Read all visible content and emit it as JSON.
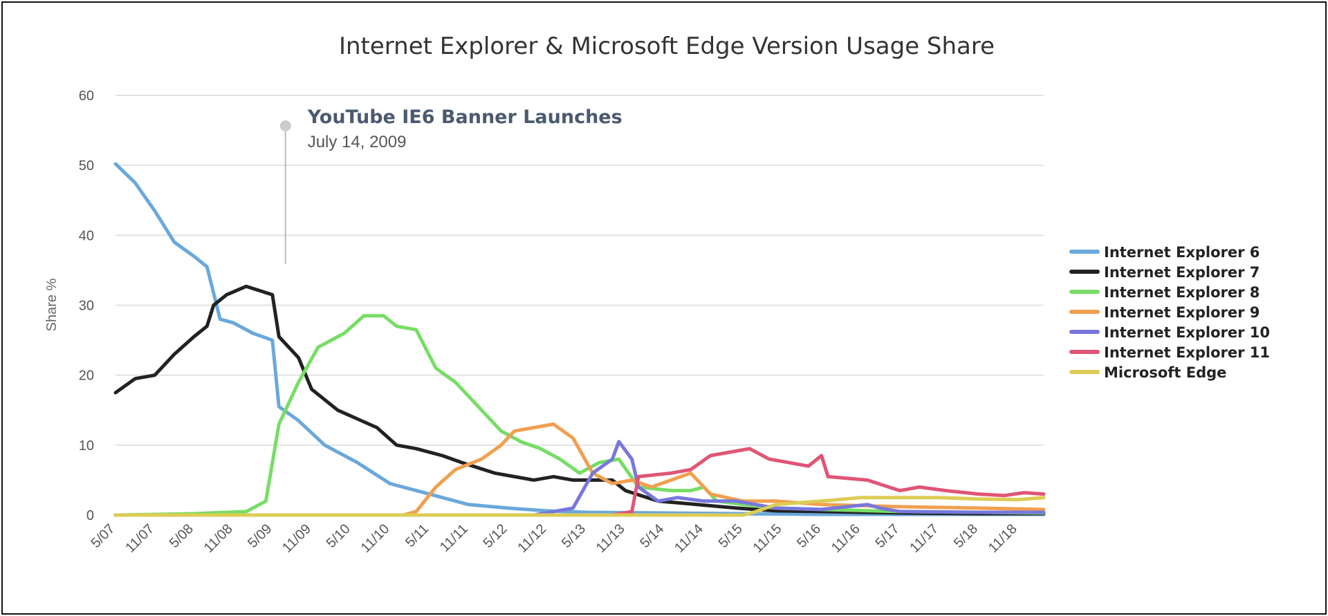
{
  "chart_data": {
    "type": "line",
    "title": "Internet Explorer & Microsoft Edge Version Usage Share",
    "xlabel": "",
    "ylabel": "Share %",
    "ylim": [
      0,
      60
    ],
    "yticks": [
      0,
      10,
      20,
      30,
      40,
      50,
      60
    ],
    "xlim": [
      "2007-05",
      "2019-03"
    ],
    "xticks": [
      "5/07",
      "11/07",
      "5/08",
      "11/08",
      "5/09",
      "11/09",
      "5/10",
      "11/10",
      "5/11",
      "11/11",
      "5/12",
      "11/12",
      "5/13",
      "11/13",
      "5/14",
      "11/14",
      "5/15",
      "11/15",
      "5/16",
      "11/16",
      "5/17",
      "11/17",
      "5/18",
      "11/18"
    ],
    "grid": true,
    "legend_position": "right",
    "annotation": {
      "title": "YouTube IE6 Banner Launches",
      "subtitle": "July 14, 2009",
      "x": "2009-07"
    },
    "series": [
      {
        "name": "Internet Explorer 6",
        "color": "#6aa8dc",
        "points": [
          [
            "2007-05",
            50.2
          ],
          [
            "2007-08",
            47.5
          ],
          [
            "2007-11",
            43.5
          ],
          [
            "2008-02",
            39
          ],
          [
            "2008-05",
            37
          ],
          [
            "2008-07",
            35.5
          ],
          [
            "2008-09",
            28
          ],
          [
            "2008-11",
            27.5
          ],
          [
            "2009-02",
            26
          ],
          [
            "2009-05",
            25
          ],
          [
            "2009-06",
            15.5
          ],
          [
            "2009-09",
            13.5
          ],
          [
            "2010-01",
            10
          ],
          [
            "2010-06",
            7.5
          ],
          [
            "2010-11",
            4.5
          ],
          [
            "2011-05",
            3
          ],
          [
            "2011-11",
            1.5
          ],
          [
            "2012-05",
            1
          ],
          [
            "2012-11",
            0.6
          ],
          [
            "2013-05",
            0.4
          ],
          [
            "2014-05",
            0.3
          ],
          [
            "2015-05",
            0.2
          ],
          [
            "2016-05",
            0.1
          ],
          [
            "2017-05",
            0.1
          ],
          [
            "2018-05",
            0.1
          ],
          [
            "2019-03",
            0.1
          ]
        ]
      },
      {
        "name": "Internet Explorer 7",
        "color": "#222222",
        "points": [
          [
            "2007-05",
            17.5
          ],
          [
            "2007-08",
            19.5
          ],
          [
            "2007-11",
            20
          ],
          [
            "2008-02",
            23
          ],
          [
            "2008-05",
            25.5
          ],
          [
            "2008-07",
            27
          ],
          [
            "2008-08",
            30
          ],
          [
            "2008-10",
            31.5
          ],
          [
            "2009-01",
            32.7
          ],
          [
            "2009-05",
            31.5
          ],
          [
            "2009-06",
            25.5
          ],
          [
            "2009-09",
            22.5
          ],
          [
            "2009-11",
            18
          ],
          [
            "2010-03",
            15
          ],
          [
            "2010-09",
            12.5
          ],
          [
            "2010-12",
            10
          ],
          [
            "2011-03",
            9.5
          ],
          [
            "2011-07",
            8.5
          ],
          [
            "2011-10",
            7.5
          ],
          [
            "2012-03",
            6
          ],
          [
            "2012-09",
            5
          ],
          [
            "2012-12",
            5.5
          ],
          [
            "2013-03",
            5
          ],
          [
            "2013-09",
            5
          ],
          [
            "2013-11",
            3.5
          ],
          [
            "2014-04",
            2
          ],
          [
            "2014-10",
            1.5
          ],
          [
            "2015-04",
            1
          ],
          [
            "2015-10",
            0.6
          ],
          [
            "2016-05",
            0.5
          ],
          [
            "2017-05",
            0.3
          ],
          [
            "2018-05",
            0.2
          ],
          [
            "2019-03",
            0.2
          ]
        ]
      },
      {
        "name": "Internet Explorer 8",
        "color": "#77dd66",
        "points": [
          [
            "2007-05",
            0
          ],
          [
            "2008-05",
            0.2
          ],
          [
            "2009-01",
            0.5
          ],
          [
            "2009-04",
            2
          ],
          [
            "2009-06",
            13
          ],
          [
            "2009-09",
            19
          ],
          [
            "2009-12",
            24
          ],
          [
            "2010-04",
            26
          ],
          [
            "2010-07",
            28.5
          ],
          [
            "2010-10",
            28.5
          ],
          [
            "2010-12",
            27
          ],
          [
            "2011-03",
            26.5
          ],
          [
            "2011-06",
            21
          ],
          [
            "2011-09",
            19
          ],
          [
            "2011-12",
            16
          ],
          [
            "2012-04",
            12
          ],
          [
            "2012-07",
            10.5
          ],
          [
            "2012-10",
            9.5
          ],
          [
            "2013-01",
            8
          ],
          [
            "2013-04",
            6
          ],
          [
            "2013-07",
            7.5
          ],
          [
            "2013-10",
            8
          ],
          [
            "2014-01",
            4
          ],
          [
            "2014-06",
            3.5
          ],
          [
            "2014-09",
            3.5
          ],
          [
            "2014-11",
            4
          ],
          [
            "2015-01",
            2
          ],
          [
            "2015-05",
            1.5
          ],
          [
            "2015-10",
            1
          ],
          [
            "2016-05",
            0.8
          ],
          [
            "2017-05",
            0.5
          ],
          [
            "2018-05",
            0.4
          ],
          [
            "2019-03",
            0.3
          ]
        ]
      },
      {
        "name": "Internet Explorer 9",
        "color": "#f0a050",
        "points": [
          [
            "2007-05",
            0
          ],
          [
            "2011-01",
            0
          ],
          [
            "2011-03",
            0.5
          ],
          [
            "2011-06",
            4
          ],
          [
            "2011-09",
            6.5
          ],
          [
            "2012-01",
            8
          ],
          [
            "2012-04",
            10
          ],
          [
            "2012-06",
            12
          ],
          [
            "2012-09",
            12.5
          ],
          [
            "2012-12",
            13
          ],
          [
            "2013-03",
            11
          ],
          [
            "2013-06",
            6
          ],
          [
            "2013-09",
            4.5
          ],
          [
            "2013-12",
            5
          ],
          [
            "2014-03",
            4
          ],
          [
            "2014-06",
            5
          ],
          [
            "2014-09",
            6
          ],
          [
            "2014-12",
            3
          ],
          [
            "2015-05",
            2
          ],
          [
            "2015-10",
            2
          ],
          [
            "2016-05",
            1.5
          ],
          [
            "2017-05",
            1.2
          ],
          [
            "2018-05",
            1
          ],
          [
            "2019-03",
            0.8
          ]
        ]
      },
      {
        "name": "Internet Explorer 10",
        "color": "#7777dd",
        "points": [
          [
            "2007-05",
            0
          ],
          [
            "2012-09",
            0
          ],
          [
            "2012-12",
            0.5
          ],
          [
            "2013-03",
            1
          ],
          [
            "2013-06",
            6
          ],
          [
            "2013-09",
            8
          ],
          [
            "2013-10",
            10.5
          ],
          [
            "2013-12",
            8
          ],
          [
            "2014-01",
            4
          ],
          [
            "2014-04",
            2
          ],
          [
            "2014-07",
            2.5
          ],
          [
            "2014-11",
            2
          ],
          [
            "2015-04",
            2
          ],
          [
            "2015-10",
            1
          ],
          [
            "2016-05",
            0.8
          ],
          [
            "2016-12",
            1.5
          ],
          [
            "2017-02",
            1
          ],
          [
            "2017-05",
            0.5
          ],
          [
            "2018-05",
            0.4
          ],
          [
            "2019-03",
            0.4
          ]
        ]
      },
      {
        "name": "Internet Explorer 11",
        "color": "#e05575",
        "points": [
          [
            "2007-05",
            0
          ],
          [
            "2013-09",
            0
          ],
          [
            "2013-12",
            0.5
          ],
          [
            "2014-01",
            5.5
          ],
          [
            "2014-06",
            6
          ],
          [
            "2014-09",
            6.5
          ],
          [
            "2014-12",
            8.5
          ],
          [
            "2015-03",
            9
          ],
          [
            "2015-06",
            9.5
          ],
          [
            "2015-09",
            8
          ],
          [
            "2015-12",
            7.5
          ],
          [
            "2016-03",
            7
          ],
          [
            "2016-05",
            8.5
          ],
          [
            "2016-06",
            5.5
          ],
          [
            "2016-12",
            5
          ],
          [
            "2017-05",
            3.5
          ],
          [
            "2017-08",
            4
          ],
          [
            "2017-12",
            3.5
          ],
          [
            "2018-05",
            3
          ],
          [
            "2018-09",
            2.8
          ],
          [
            "2018-12",
            3.2
          ],
          [
            "2019-03",
            3
          ]
        ]
      },
      {
        "name": "Microsoft Edge",
        "color": "#ddcc55",
        "points": [
          [
            "2007-05",
            0
          ],
          [
            "2015-05",
            0
          ],
          [
            "2015-07",
            0.5
          ],
          [
            "2015-10",
            1.5
          ],
          [
            "2016-05",
            2
          ],
          [
            "2016-11",
            2.5
          ],
          [
            "2017-05",
            2.5
          ],
          [
            "2017-11",
            2.5
          ],
          [
            "2018-05",
            2.3
          ],
          [
            "2018-11",
            2.2
          ],
          [
            "2019-03",
            2.5
          ]
        ]
      }
    ]
  }
}
